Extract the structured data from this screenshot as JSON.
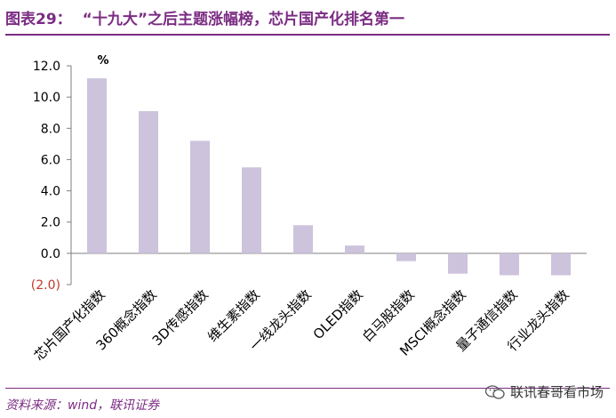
{
  "header": {
    "figure_label": "图表29：",
    "title": "“十九大”之后主题涨幅榜，芯片国产化排名第一"
  },
  "footer": {
    "source": "资料来源：wind，联讯证券"
  },
  "watermark": {
    "text": "联讯春哥看市场",
    "icon": "wechat-icon"
  },
  "colors": {
    "accent": "#7b2c83",
    "bar": "#cdc3dc",
    "negative_tick": "#c0392b"
  },
  "chart_data": {
    "type": "bar",
    "unit_label": "%",
    "categories": [
      "芯片国产化指数",
      "360概念指数",
      "3D传感指数",
      "维生素指数",
      "一线龙头指数",
      "OLED指数",
      "白马股指数",
      "MSCI概念指数",
      "量子通信指数",
      "行业龙头指数"
    ],
    "values": [
      11.2,
      9.1,
      7.2,
      5.5,
      1.8,
      0.5,
      -0.5,
      -1.3,
      -1.4,
      -1.4
    ],
    "ylim": [
      -2.0,
      12.0
    ],
    "yticks": [
      "12.0",
      "10.0",
      "8.0",
      "6.0",
      "4.0",
      "2.0",
      "0.0",
      "(2.0)"
    ],
    "grid": false
  }
}
